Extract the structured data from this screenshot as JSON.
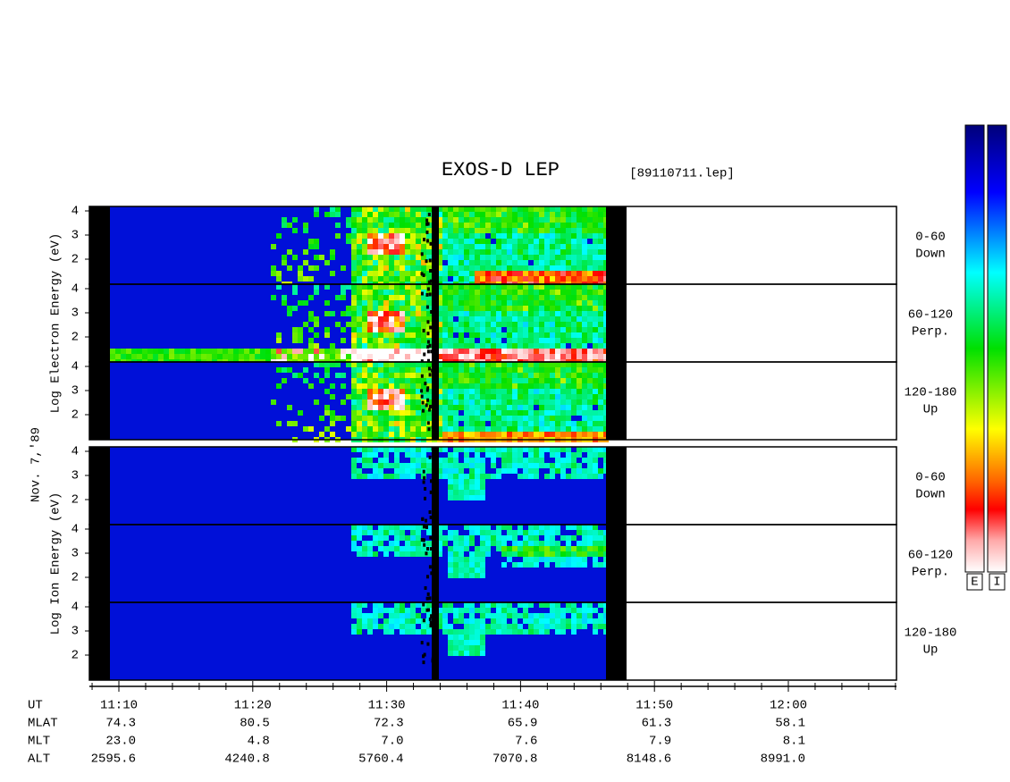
{
  "title": "EXOS-D LEP",
  "file": "[89110711.lep]",
  "date": "Nov. 7,'89",
  "groups": [
    {
      "ylabel": "Log Electron Energy (eV)",
      "panels": [
        {
          "label": [
            "0-60",
            "Down"
          ],
          "yticks": [
            "4",
            "3",
            "2"
          ]
        },
        {
          "label": [
            "60-120",
            "Perp."
          ],
          "yticks": [
            "4",
            "3",
            "2"
          ]
        },
        {
          "label": [
            "120-180",
            "Up"
          ],
          "yticks": [
            "4",
            "3",
            "2"
          ]
        }
      ]
    },
    {
      "ylabel": "Log Ion Energy (eV)",
      "panels": [
        {
          "label": [
            "0-60",
            "Down"
          ],
          "yticks": [
            "4",
            "3",
            "2"
          ]
        },
        {
          "label": [
            "60-120",
            "Perp."
          ],
          "yticks": [
            "4",
            "3",
            "2"
          ]
        },
        {
          "label": [
            "120-180",
            "Up"
          ],
          "yticks": [
            "4",
            "3",
            "2"
          ]
        }
      ]
    }
  ],
  "colorbars": [
    "E",
    "I"
  ],
  "ephemeris": [
    {
      "name": "UT",
      "values": [
        "11:10",
        "11:20",
        "11:30",
        "11:40",
        "11:50",
        "12:00"
      ]
    },
    {
      "name": "MLAT",
      "values": [
        "74.3",
        "80.5",
        "72.3",
        "65.9",
        "61.3",
        "58.1"
      ]
    },
    {
      "name": "MLT",
      "values": [
        "23.0",
        "4.8",
        "7.0",
        "7.6",
        "7.9",
        "8.1"
      ]
    },
    {
      "name": "ALT",
      "values": [
        "2595.6",
        "4240.8",
        "5760.4",
        "7070.8",
        "8148.6",
        "8991.0"
      ]
    }
  ]
}
